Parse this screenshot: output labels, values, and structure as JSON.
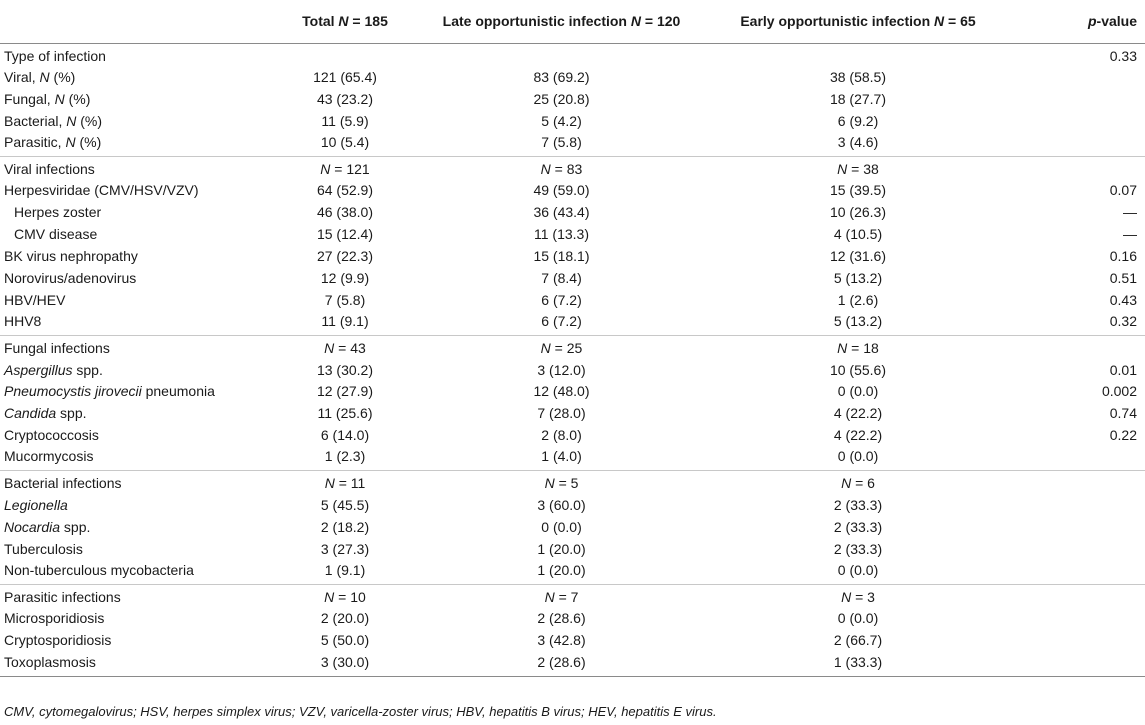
{
  "header": {
    "col0": "",
    "col1": "Total N = 185",
    "col2": "Late opportunistic infection N = 120",
    "col3": "Early opportunistic infection N = 65",
    "col4": "p-value"
  },
  "sections": [
    {
      "name": "type",
      "rows": [
        {
          "label": "Type of infection",
          "total": "",
          "late": "",
          "early": "",
          "p": "0.33"
        },
        {
          "label": "Viral, N (%)",
          "total": "121 (65.4)",
          "late": "83 (69.2)",
          "early": "38 (58.5)",
          "p": ""
        },
        {
          "label": "Fungal, N (%)",
          "total": "43 (23.2)",
          "late": "25 (20.8)",
          "early": "18 (27.7)",
          "p": ""
        },
        {
          "label": "Bacterial, N (%)",
          "total": "11 (5.9)",
          "late": "5 (4.2)",
          "early": "6 (9.2)",
          "p": ""
        },
        {
          "label": "Parasitic, N (%)",
          "total": "10 (5.4)",
          "late": "7 (5.8)",
          "early": "3 (4.6)",
          "p": ""
        }
      ]
    },
    {
      "name": "viral",
      "rows": [
        {
          "label": "Viral infections",
          "total": "N = 121",
          "late": "N = 83",
          "early": "N = 38",
          "p": ""
        },
        {
          "label": "Herpesviridae (CMV/HSV/VZV)",
          "total": "64 (52.9)",
          "late": "49 (59.0)",
          "early": "15 (39.5)",
          "p": "0.07"
        },
        {
          "label": "Herpes zoster",
          "total": "46 (38.0)",
          "late": "36 (43.4)",
          "early": "10 (26.3)",
          "p": "—",
          "sub": true
        },
        {
          "label": "CMV disease",
          "total": "15 (12.4)",
          "late": "11 (13.3)",
          "early": "4 (10.5)",
          "p": "—",
          "sub": true
        },
        {
          "label": "BK virus nephropathy",
          "total": "27 (22.3)",
          "late": "15 (18.1)",
          "early": "12 (31.6)",
          "p": "0.16"
        },
        {
          "label": "Norovirus/adenovirus",
          "total": "12 (9.9)",
          "late": "7 (8.4)",
          "early": "5 (13.2)",
          "p": "0.51"
        },
        {
          "label": "HBV/HEV",
          "total": "7 (5.8)",
          "late": "6 (7.2)",
          "early": "1 (2.6)",
          "p": "0.43"
        },
        {
          "label": "HHV8",
          "total": "11 (9.1)",
          "late": "6 (7.2)",
          "early": "5 (13.2)",
          "p": "0.32"
        }
      ]
    },
    {
      "name": "fungal",
      "rows": [
        {
          "label": "Fungal infections",
          "total": "N = 43",
          "late": "N = 25",
          "early": "N = 18",
          "p": ""
        },
        {
          "label": "Aspergillus spp.",
          "total": "13 (30.2)",
          "late": "3 (12.0)",
          "early": "10 (55.6)",
          "p": "0.01"
        },
        {
          "label": "Pneumocystis jirovecii pneumonia",
          "total": "12 (27.9)",
          "late": "12 (48.0)",
          "early": "0 (0.0)",
          "p": "0.002"
        },
        {
          "label": "Candida spp.",
          "total": "11 (25.6)",
          "late": "7 (28.0)",
          "early": "4 (22.2)",
          "p": "0.74"
        },
        {
          "label": "Cryptococcosis",
          "total": "6 (14.0)",
          "late": "2 (8.0)",
          "early": "4 (22.2)",
          "p": "0.22"
        },
        {
          "label": "Mucormycosis",
          "total": "1 (2.3)",
          "late": "1 (4.0)",
          "early": "0 (0.0)",
          "p": ""
        }
      ]
    },
    {
      "name": "bacterial",
      "rows": [
        {
          "label": "Bacterial infections",
          "total": "N = 11",
          "late": "N = 5",
          "early": "N = 6",
          "p": ""
        },
        {
          "label": "Legionella",
          "total": "5 (45.5)",
          "late": "3 (60.0)",
          "early": "2 (33.3)",
          "p": ""
        },
        {
          "label": "Nocardia spp.",
          "total": "2 (18.2)",
          "late": "0 (0.0)",
          "early": "2 (33.3)",
          "p": ""
        },
        {
          "label": "Tuberculosis",
          "total": "3 (27.3)",
          "late": "1 (20.0)",
          "early": "2 (33.3)",
          "p": ""
        },
        {
          "label": "Non-tuberculous mycobacteria",
          "total": "1 (9.1)",
          "late": "1 (20.0)",
          "early": "0 (0.0)",
          "p": ""
        }
      ]
    },
    {
      "name": "parasitic",
      "rows": [
        {
          "label": "Parasitic infections",
          "total": "N = 10",
          "late": "N = 7",
          "early": "N = 3",
          "p": ""
        },
        {
          "label": "Microsporidiosis",
          "total": "2 (20.0)",
          "late": "2 (28.6)",
          "early": "0 (0.0)",
          "p": ""
        },
        {
          "label": "Cryptosporidiosis",
          "total": "5 (50.0)",
          "late": "3 (42.8)",
          "early": "2 (66.7)",
          "p": ""
        },
        {
          "label": "Toxoplasmosis",
          "total": "3 (30.0)",
          "late": "2 (28.6)",
          "early": "1 (33.3)",
          "p": ""
        }
      ]
    }
  ],
  "footnote": "CMV, cytomegalovirus; HSV, herpes simplex virus; VZV, varicella-zoster virus; HBV, hepatitis B virus; HEV, hepatitis E virus."
}
